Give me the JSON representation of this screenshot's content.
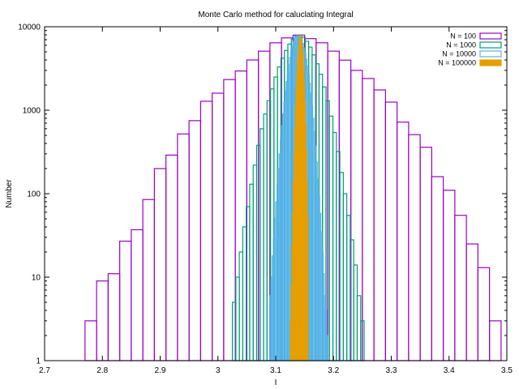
{
  "chart_data": {
    "type": "bar",
    "title": "Monte Carlo method for caluclating Integral",
    "xlabel": "I",
    "ylabel": "Number",
    "xlim": [
      2.7,
      3.5
    ],
    "ylim": [
      1,
      10000
    ],
    "yscale": "log",
    "x_ticks": [
      "2.7",
      "2.8",
      "2.9",
      "3",
      "3.1",
      "3.2",
      "3.3",
      "3.4",
      "3.5"
    ],
    "y_ticks": [
      "1",
      "10",
      "100",
      "1000",
      "10000"
    ],
    "grid": false,
    "legend_position": "top-right",
    "series": [
      {
        "name": "N = 100",
        "color": "#9a00c6",
        "bin_width": 0.02,
        "x": [
          2.78,
          2.8,
          2.82,
          2.84,
          2.86,
          2.88,
          2.9,
          2.92,
          2.94,
          2.96,
          2.98,
          3.0,
          3.02,
          3.04,
          3.06,
          3.08,
          3.1,
          3.12,
          3.14,
          3.16,
          3.18,
          3.2,
          3.22,
          3.24,
          3.26,
          3.28,
          3.3,
          3.32,
          3.34,
          3.36,
          3.38,
          3.4,
          3.42,
          3.44,
          3.46,
          3.48
        ],
        "values": [
          3,
          9,
          11,
          27,
          37,
          85,
          200,
          290,
          520,
          750,
          1280,
          1600,
          2330,
          2950,
          4000,
          5100,
          6420,
          7350,
          7950,
          7200,
          6420,
          5100,
          3980,
          3000,
          2400,
          1750,
          1250,
          720,
          510,
          360,
          160,
          110,
          55,
          25,
          13,
          3
        ]
      },
      {
        "name": "N = 1000",
        "color": "#009e73",
        "bin_width": 0.006,
        "x": [
          3.028,
          3.034,
          3.04,
          3.046,
          3.052,
          3.058,
          3.064,
          3.07,
          3.076,
          3.082,
          3.088,
          3.094,
          3.1,
          3.106,
          3.112,
          3.118,
          3.124,
          3.13,
          3.136,
          3.142,
          3.148,
          3.154,
          3.16,
          3.166,
          3.172,
          3.178,
          3.184,
          3.19,
          3.196,
          3.202,
          3.208,
          3.214,
          3.22,
          3.226,
          3.232,
          3.238,
          3.244,
          3.25
        ],
        "values": [
          5,
          10,
          20,
          40,
          70,
          130,
          220,
          380,
          600,
          900,
          1300,
          1800,
          2500,
          3300,
          4200,
          5200,
          6200,
          7100,
          7700,
          7900,
          7500,
          6700,
          5700,
          4600,
          3600,
          2700,
          1900,
          1300,
          850,
          540,
          320,
          180,
          100,
          55,
          28,
          14,
          6,
          3
        ]
      },
      {
        "name": "N = 10000",
        "color": "#56b4e9",
        "bin_width": 0.002,
        "x": [
          3.091,
          3.093,
          3.095,
          3.097,
          3.099,
          3.101,
          3.103,
          3.105,
          3.107,
          3.109,
          3.111,
          3.113,
          3.115,
          3.117,
          3.119,
          3.121,
          3.123,
          3.125,
          3.127,
          3.129,
          3.131,
          3.133,
          3.135,
          3.137,
          3.139,
          3.141,
          3.143,
          3.145,
          3.147,
          3.149,
          3.151,
          3.153,
          3.155,
          3.157,
          3.159,
          3.161,
          3.163,
          3.165,
          3.167,
          3.169,
          3.171,
          3.173,
          3.175,
          3.177,
          3.179,
          3.181,
          3.183,
          3.185,
          3.187,
          3.189,
          3.191
        ],
        "values": [
          6,
          10,
          18,
          30,
          50,
          80,
          130,
          200,
          300,
          450,
          650,
          900,
          1250,
          1700,
          2200,
          2800,
          3500,
          4300,
          5100,
          5900,
          6600,
          7200,
          7600,
          7800,
          7750,
          7600,
          7300,
          6900,
          6300,
          5600,
          4900,
          4100,
          3400,
          2700,
          2100,
          1600,
          1150,
          800,
          550,
          370,
          240,
          150,
          95,
          58,
          35,
          20,
          11,
          6,
          4,
          2,
          1
        ]
      },
      {
        "name": "N = 100000",
        "color": "#e69f00",
        "bin_width": 0.0012,
        "x": [
          3.1246,
          3.1258,
          3.127,
          3.1282,
          3.1294,
          3.1306,
          3.1318,
          3.133,
          3.1342,
          3.1354,
          3.1366,
          3.1378,
          3.139,
          3.1402,
          3.1414,
          3.1426,
          3.1438,
          3.145,
          3.1462,
          3.1474,
          3.1486,
          3.1498,
          3.151,
          3.1522,
          3.1534,
          3.1546,
          3.1558
        ],
        "values": [
          1,
          3,
          8,
          25,
          60,
          140,
          300,
          600,
          1100,
          1800,
          2800,
          4000,
          5300,
          6600,
          7500,
          7900,
          7700,
          7000,
          5900,
          4600,
          3300,
          2200,
          1300,
          700,
          340,
          150,
          55
        ]
      }
    ]
  }
}
